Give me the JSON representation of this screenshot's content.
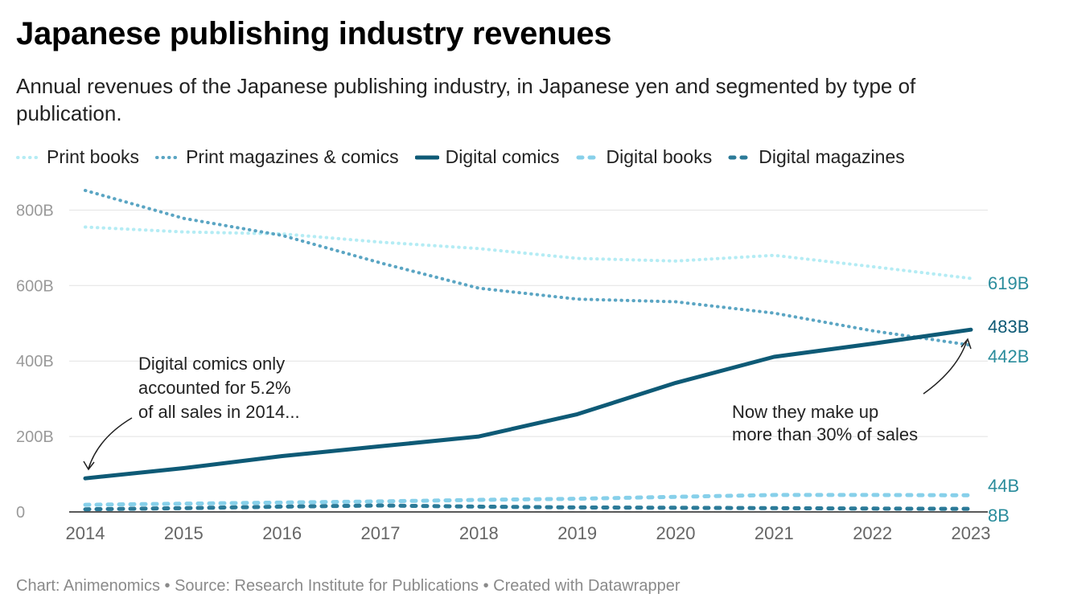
{
  "title": "Japanese publishing industry revenues",
  "subtitle": "Annual revenues of the Japanese publishing industry, in Japanese yen and segmented by type of publication.",
  "footer": "Chart: Animenomics • Source: Research Institute for Publications • Created with Datawrapper",
  "colors": {
    "print_books": "#b4ecf4",
    "print_magazines": "#5aa5c3",
    "digital_comics": "#0e5a76",
    "digital_books": "#87d0ea",
    "digital_magazines": "#2b7a98"
  },
  "chart_data": {
    "type": "line",
    "x": [
      "2014",
      "2015",
      "2016",
      "2017",
      "2018",
      "2019",
      "2020",
      "2021",
      "2022",
      "2023"
    ],
    "ylim": [
      0,
      850
    ],
    "yticks": [
      0,
      200,
      400,
      600,
      800
    ],
    "ytick_labels": [
      "0",
      "200B",
      "400B",
      "600B",
      "800B"
    ],
    "grid": true,
    "legend_position": "top",
    "series": [
      {
        "key": "print_books",
        "name": "Print books",
        "style": "dotted",
        "end_label": "619B",
        "values": [
          755,
          742,
          737,
          715,
          698,
          672,
          665,
          680,
          650,
          619
        ]
      },
      {
        "key": "print_magazines",
        "name": "Print magazines & comics",
        "style": "dotted",
        "end_label": "442B",
        "values": [
          852,
          778,
          733,
          660,
          593,
          564,
          557,
          527,
          480,
          442
        ]
      },
      {
        "key": "digital_comics",
        "name": "Digital comics",
        "style": "solid",
        "end_label": "483B",
        "values": [
          89,
          116,
          148,
          174,
          200,
          259,
          342,
          411,
          446,
          483
        ]
      },
      {
        "key": "digital_books",
        "name": "Digital books",
        "style": "dashed",
        "end_label": "44B",
        "values": [
          19,
          22,
          25,
          28,
          32,
          35,
          40,
          45,
          45,
          44
        ]
      },
      {
        "key": "digital_magazines",
        "name": "Digital magazines",
        "style": "dashed",
        "end_label": "8B",
        "values": [
          7,
          10,
          14,
          17,
          14,
          12,
          11,
          10,
          9,
          8
        ]
      }
    ],
    "annotations": [
      {
        "lines": [
          "Digital comics only",
          "accounted for 5.2%",
          "of all sales in 2014..."
        ]
      },
      {
        "lines": [
          "Now they make up",
          "more than 30% of sales"
        ]
      }
    ]
  }
}
